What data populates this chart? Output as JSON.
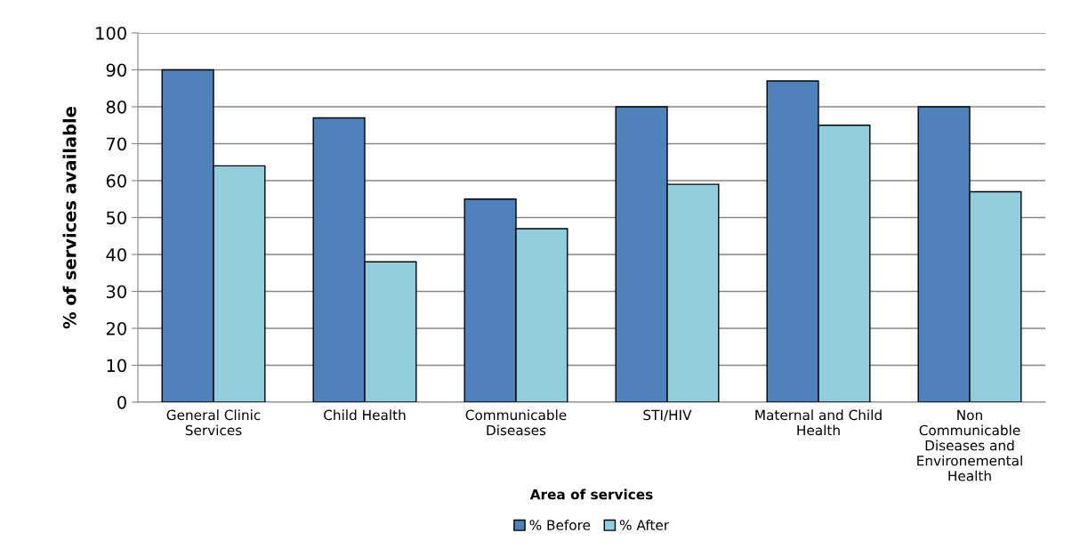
{
  "chart_data": {
    "type": "bar",
    "xlabel": "Area of services",
    "ylabel": "% of services available",
    "categories": [
      "General Clinic\nServices",
      "Child Health",
      "Communicable\nDiseases",
      "STI/HIV",
      "Maternal and Child\nHealth",
      "Non\nCommunicable\nDiseases and\nEnvironemental\nHealth"
    ],
    "series": [
      {
        "name": "% Before",
        "color": "#4f81bd",
        "values": [
          90,
          77,
          55,
          80,
          87,
          80
        ]
      },
      {
        "name": "% After",
        "color": "#92cddc",
        "values": [
          64,
          38,
          47,
          59,
          75,
          57
        ]
      }
    ],
    "ylim": [
      0,
      100
    ],
    "yticks": [
      0,
      10,
      20,
      30,
      40,
      50,
      60,
      70,
      80,
      90,
      100
    ],
    "grid": "y",
    "legend": "bottom"
  }
}
